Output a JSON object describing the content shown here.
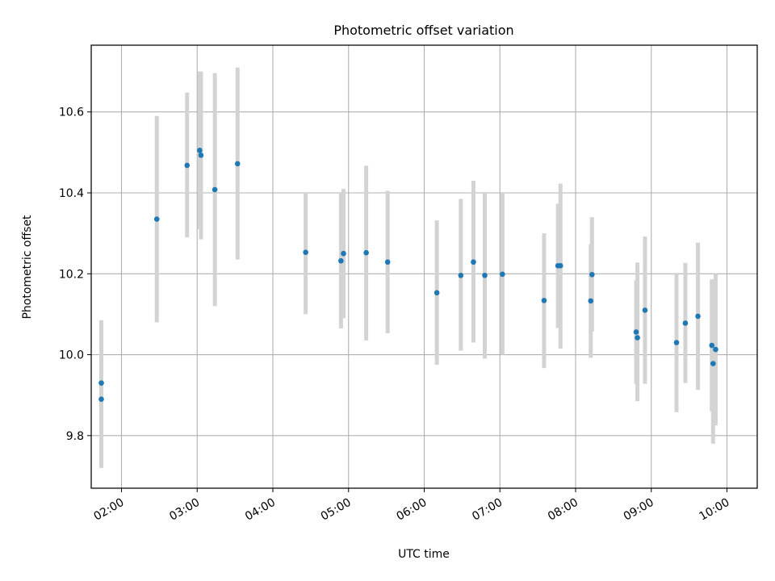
{
  "chart_data": {
    "type": "scatter",
    "title": "Photometric offset variation",
    "xlabel": "UTC time",
    "ylabel": "Photometric offset",
    "x_unit": "hours UTC",
    "xlim": [
      "01:36",
      "10:24"
    ],
    "ylim": [
      9.67,
      10.765
    ],
    "x_ticks": [
      "02:00",
      "03:00",
      "04:00",
      "05:00",
      "06:00",
      "07:00",
      "08:00",
      "09:00",
      "10:00"
    ],
    "y_ticks": [
      "9.8",
      "10.0",
      "10.2",
      "10.4",
      "10.6"
    ],
    "grid": true,
    "marker_color": "#1f77b4",
    "errorbar_color": "#d3d3d3",
    "series": [
      {
        "points": [
          {
            "time": "01:44",
            "y": 9.93,
            "low": 9.775,
            "high": 10.085
          },
          {
            "time": "01:44",
            "y": 9.89,
            "low": 9.72,
            "high": 10.06
          },
          {
            "time": "02:28",
            "y": 10.335,
            "low": 10.08,
            "high": 10.59
          },
          {
            "time": "02:52",
            "y": 10.468,
            "low": 10.29,
            "high": 10.648
          },
          {
            "time": "03:02",
            "y": 10.505,
            "low": 10.31,
            "high": 10.7
          },
          {
            "time": "03:03",
            "y": 10.493,
            "low": 10.285,
            "high": 10.7
          },
          {
            "time": "03:14",
            "y": 10.408,
            "low": 10.12,
            "high": 10.696
          },
          {
            "time": "03:32",
            "y": 10.472,
            "low": 10.235,
            "high": 10.71
          },
          {
            "time": "04:26",
            "y": 10.253,
            "low": 10.1,
            "high": 10.4
          },
          {
            "time": "04:54",
            "y": 10.232,
            "low": 10.065,
            "high": 10.4
          },
          {
            "time": "04:56",
            "y": 10.25,
            "low": 10.09,
            "high": 10.41
          },
          {
            "time": "05:14",
            "y": 10.252,
            "low": 10.035,
            "high": 10.467
          },
          {
            "time": "05:31",
            "y": 10.229,
            "low": 10.053,
            "high": 10.405
          },
          {
            "time": "06:10",
            "y": 10.153,
            "low": 9.975,
            "high": 10.332
          },
          {
            "time": "06:29",
            "y": 10.196,
            "low": 10.01,
            "high": 10.385
          },
          {
            "time": "06:39",
            "y": 10.229,
            "low": 10.03,
            "high": 10.43
          },
          {
            "time": "06:48",
            "y": 10.196,
            "low": 9.99,
            "high": 10.402
          },
          {
            "time": "07:02",
            "y": 10.199,
            "low": 10.0,
            "high": 10.4
          },
          {
            "time": "07:35",
            "y": 10.134,
            "low": 9.967,
            "high": 10.3
          },
          {
            "time": "07:46",
            "y": 10.22,
            "low": 10.066,
            "high": 10.373
          },
          {
            "time": "07:48",
            "y": 10.22,
            "low": 10.015,
            "high": 10.423
          },
          {
            "time": "08:12",
            "y": 10.133,
            "low": 9.992,
            "high": 10.273
          },
          {
            "time": "08:13",
            "y": 10.198,
            "low": 10.057,
            "high": 10.34
          },
          {
            "time": "08:48",
            "y": 10.056,
            "low": 9.928,
            "high": 10.184
          },
          {
            "time": "08:49",
            "y": 10.042,
            "low": 9.885,
            "high": 10.228
          },
          {
            "time": "08:55",
            "y": 10.11,
            "low": 9.928,
            "high": 10.292
          },
          {
            "time": "09:20",
            "y": 10.03,
            "low": 9.858,
            "high": 10.202
          },
          {
            "time": "09:27",
            "y": 10.078,
            "low": 9.93,
            "high": 10.227
          },
          {
            "time": "09:37",
            "y": 10.095,
            "low": 9.913,
            "high": 10.277
          },
          {
            "time": "09:48",
            "y": 10.023,
            "low": 9.86,
            "high": 10.186
          },
          {
            "time": "09:49",
            "y": 9.978,
            "low": 9.78,
            "high": 10.186
          },
          {
            "time": "09:51",
            "y": 10.013,
            "low": 9.825,
            "high": 10.2
          }
        ]
      }
    ]
  }
}
